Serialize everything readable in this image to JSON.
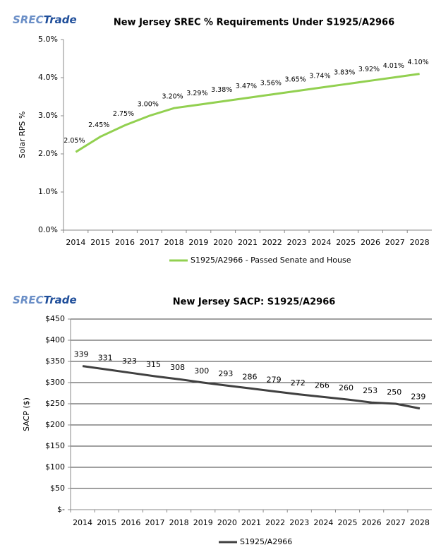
{
  "chart_data": [
    {
      "type": "line",
      "title": "New Jersey SREC % Requirements Under S1925/A2966",
      "logo": {
        "left": "SREC",
        "right": "Trade"
      },
      "ylabel": "Solar RPS %",
      "categories": [
        "2014",
        "2015",
        "2016",
        "2017",
        "2018",
        "2019",
        "2020",
        "2021",
        "2022",
        "2023",
        "2024",
        "2025",
        "2026",
        "2027",
        "2028"
      ],
      "series": [
        {
          "name": "S1925/A2966 - Passed Senate and House",
          "color": "#92d050",
          "values": [
            2.05,
            2.45,
            2.75,
            3.0,
            3.2,
            3.29,
            3.38,
            3.47,
            3.56,
            3.65,
            3.74,
            3.83,
            3.92,
            4.01,
            4.1
          ],
          "value_labels": [
            "2.05%",
            "2.45%",
            "2.75%",
            "3.00%",
            "3.20%",
            "3.29%",
            "3.38%",
            "3.47%",
            "3.56%",
            "3.65%",
            "3.74%",
            "3.83%",
            "3.92%",
            "4.01%",
            "4.10%"
          ]
        }
      ],
      "ylim": [
        0,
        5
      ],
      "yticks": [
        {
          "value": 0,
          "label": "0.0%"
        },
        {
          "value": 1,
          "label": "1.0%"
        },
        {
          "value": 2,
          "label": "2.0%"
        },
        {
          "value": 3,
          "label": "3.0%"
        },
        {
          "value": 4,
          "label": "4.0%"
        },
        {
          "value": 5,
          "label": "5.0%"
        }
      ],
      "grid": false,
      "legend": "bottom"
    },
    {
      "type": "line",
      "title": "New Jersey SACP: S1925/A2966",
      "logo": {
        "left": "SREC",
        "right": "Trade"
      },
      "ylabel": "SACP ($)",
      "categories": [
        "2014",
        "2015",
        "2016",
        "2017",
        "2018",
        "2019",
        "2020",
        "2021",
        "2022",
        "2023",
        "2024",
        "2025",
        "2026",
        "2027",
        "2028"
      ],
      "series": [
        {
          "name": "S1925/A2966",
          "color": "#404040",
          "values": [
            339,
            331,
            323,
            315,
            308,
            300,
            293,
            286,
            279,
            272,
            266,
            260,
            253,
            250,
            239
          ]
        }
      ],
      "ylim": [
        0,
        450
      ],
      "yticks": [
        {
          "value": 0,
          "label": "$-"
        },
        {
          "value": 50,
          "label": "$50"
        },
        {
          "value": 100,
          "label": "$100"
        },
        {
          "value": 150,
          "label": "$150"
        },
        {
          "value": 200,
          "label": "$200"
        },
        {
          "value": 250,
          "label": "$250"
        },
        {
          "value": 300,
          "label": "$300"
        },
        {
          "value": 350,
          "label": "$350"
        },
        {
          "value": 400,
          "label": "$400"
        },
        {
          "value": 450,
          "label": "$450"
        }
      ],
      "grid": true,
      "legend": "bottom"
    }
  ]
}
